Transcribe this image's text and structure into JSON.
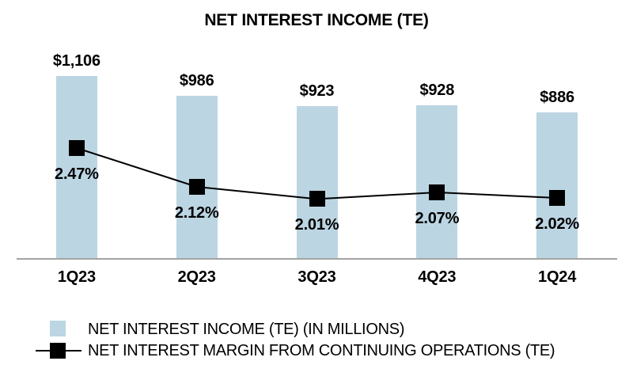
{
  "chart_data": {
    "type": "bar+line",
    "title": "NET INTEREST INCOME (TE)",
    "categories": [
      "1Q23",
      "2Q23",
      "3Q23",
      "4Q23",
      "1Q24"
    ],
    "series": [
      {
        "name": "NET INTEREST INCOME (TE) (IN MILLIONS)",
        "type": "bar",
        "values": [
          1106,
          986,
          923,
          928,
          886
        ],
        "labels": [
          "$1,106",
          "$986",
          "$923",
          "$928",
          "$886"
        ],
        "color": "#bcd5e2"
      },
      {
        "name": "NET INTEREST MARGIN FROM CONTINUING OPERATIONS (TE)",
        "type": "line",
        "values": [
          2.47,
          2.12,
          2.01,
          2.07,
          2.02
        ],
        "labels": [
          "2.47%",
          "2.12%",
          "2.01%",
          "2.07%",
          "2.02%"
        ],
        "color": "#000000",
        "marker": "square"
      }
    ],
    "axis_line_color": "#a3a3a3",
    "background": "#ffffff",
    "grid": false,
    "legend_position": "bottom-left"
  }
}
